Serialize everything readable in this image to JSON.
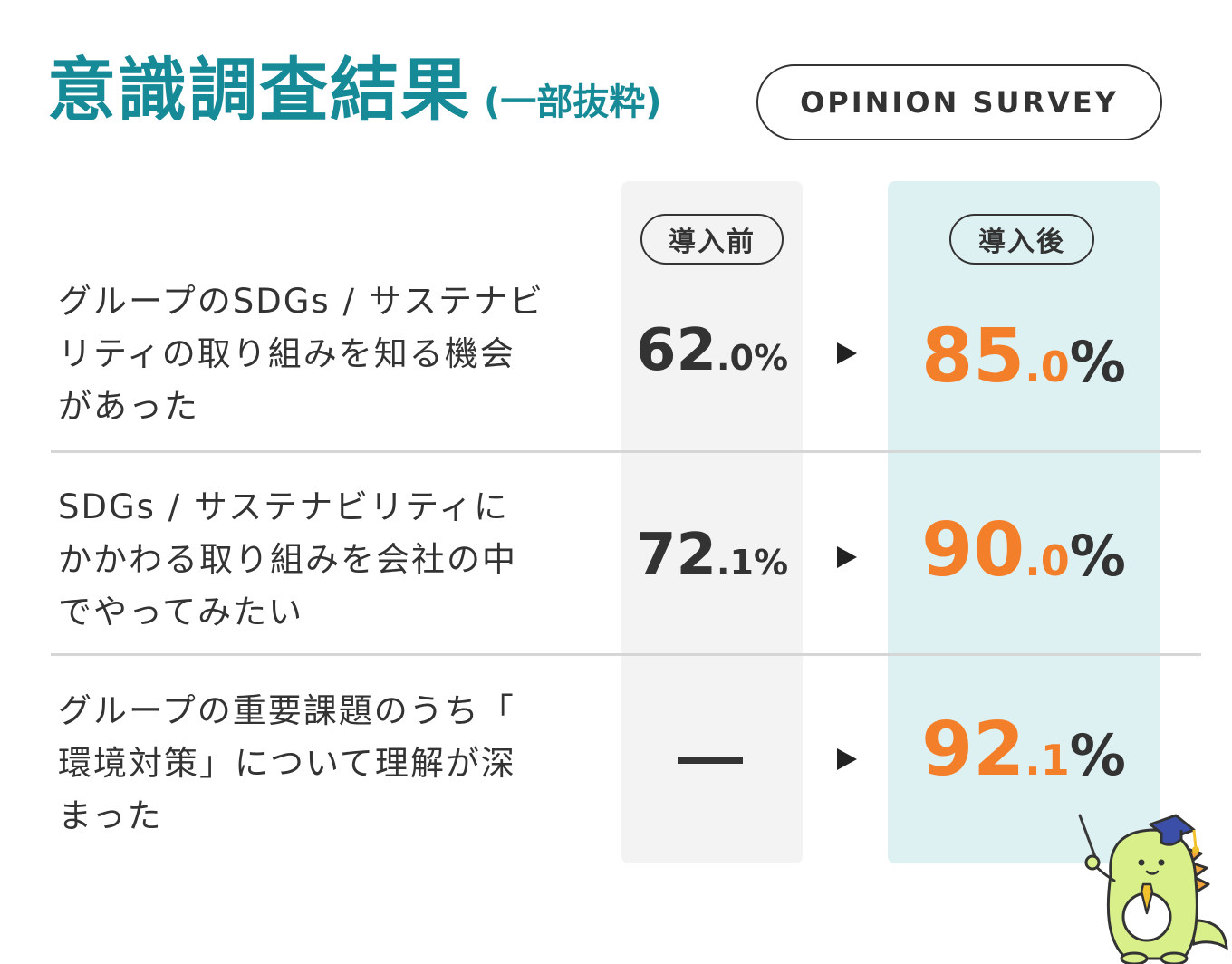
{
  "header": {
    "title": "意識調査結果",
    "subtitle": "(一部抜粋)",
    "badge": "OPINION SURVEY"
  },
  "columns": {
    "before_label": "導入前",
    "after_label": "導入後"
  },
  "rows": [
    {
      "question_lines": [
        "グループのSDGs / サステナビ",
        "リティの取り組みを知る機会",
        "があった"
      ],
      "before": {
        "int": "62",
        "dec": ".0",
        "pct": "%"
      },
      "after": {
        "int": "85",
        "dec": ".0",
        "pct": "%"
      }
    },
    {
      "question_lines": [
        "SDGs / サステナビリティに",
        "かかわる取り組みを会社の中",
        "でやってみたい"
      ],
      "before": {
        "int": "72",
        "dec": ".1",
        "pct": "%"
      },
      "after": {
        "int": "90",
        "dec": ".0",
        "pct": "%"
      }
    },
    {
      "question_lines": [
        "グループの重要課題のうち「",
        "環境対策」について理解が深",
        "まった"
      ],
      "before": {
        "int": "",
        "dec": "",
        "pct": ""
      },
      "after": {
        "int": "92",
        "dec": ".1",
        "pct": "%"
      }
    }
  ],
  "colors": {
    "title": "#168a96",
    "highlight": "#f47f2a",
    "after_column_bg": "#ddf0f2",
    "before_column_bg": "#f3f3f3"
  },
  "icons": {
    "row_arrow": "triangle-right-icon",
    "mascot": "dinosaur-mascot-with-graduation-cap"
  }
}
